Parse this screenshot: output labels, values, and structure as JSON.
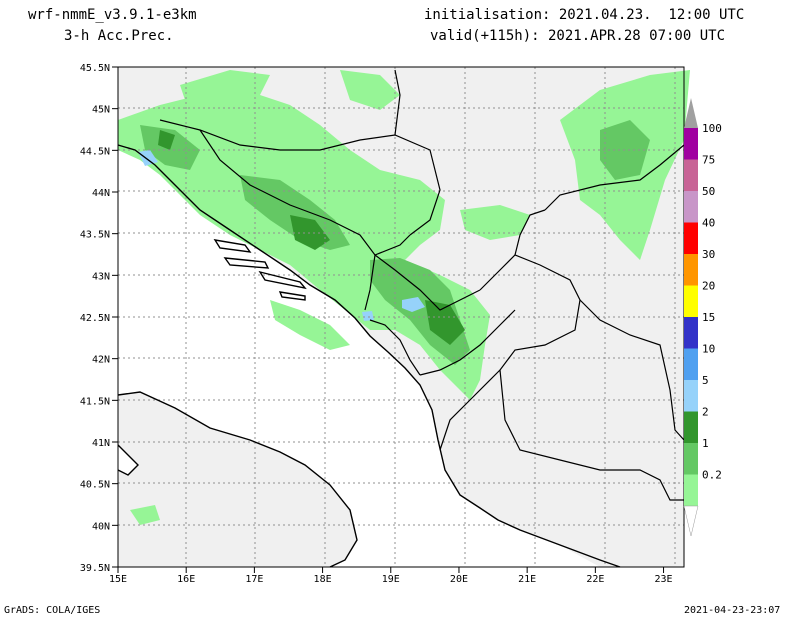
{
  "header": {
    "model": "wrf-nmmE_v3.9.1-e3km",
    "field": "3-h Acc.Prec.",
    "init": "initialisation: 2021.04.23.  12:00 UTC",
    "valid": "valid(+115h): 2021.APR.28 07:00 UTC"
  },
  "footer": {
    "left": "GrADS: COLA/IGES",
    "right": "2021-04-23-23:07"
  },
  "map": {
    "lat_labels": [
      "45.5N",
      "45N",
      "44.5N",
      "44N",
      "43.5N",
      "43N",
      "42.5N",
      "42N",
      "41.5N",
      "41N",
      "40.5N",
      "40N",
      "39.5N"
    ],
    "lon_labels": [
      "15E",
      "16E",
      "17E",
      "18E",
      "19E",
      "20E",
      "21E",
      "22E",
      "23E"
    ],
    "lat_range": [
      39.5,
      45.5
    ],
    "lon_range": [
      15,
      23.3
    ],
    "land_color": "#f0f0f0",
    "sea_color": "#ffffff"
  },
  "colorbar": {
    "labels": [
      "100",
      "75",
      "50",
      "40",
      "30",
      "20",
      "15",
      "10",
      "5",
      "2",
      "1",
      "0.2"
    ],
    "colors": [
      "#a0a0a0",
      "#a000a0",
      "#c86496",
      "#c896c8",
      "#ff0000",
      "#ff9600",
      "#ffff00",
      "#3232c8",
      "#50a0f0",
      "#96d2fa",
      "#32962d",
      "#64c864",
      "#96f596"
    ]
  }
}
